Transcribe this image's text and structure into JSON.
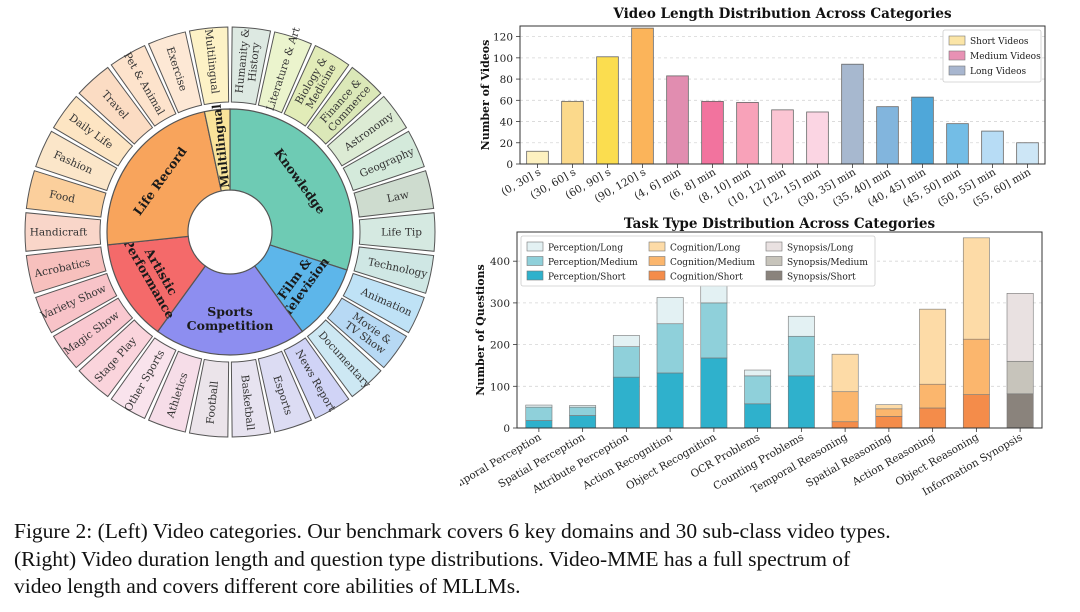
{
  "sunburst": {
    "domains": [
      {
        "name": "Knowledge",
        "lines": [
          "Knowledge"
        ],
        "color": "#6ecbb4",
        "subs": [
          {
            "lines": [
              "Humanity &",
              "History"
            ],
            "color": "#dde9e2"
          },
          {
            "lines": [
              "Literature & Art"
            ],
            "color": "#ebf4cd"
          },
          {
            "lines": [
              "Biology &",
              "Medicine"
            ],
            "color": "#e2ecb8"
          },
          {
            "lines": [
              "Finance &",
              "Commerce"
            ],
            "color": "#dbe8b8"
          },
          {
            "lines": [
              "Astronomy"
            ],
            "color": "#dcebd4"
          },
          {
            "lines": [
              "Geography"
            ],
            "color": "#d4eadb"
          },
          {
            "lines": [
              "Law"
            ],
            "color": "#cedccf"
          },
          {
            "lines": [
              "Life Tip"
            ],
            "color": "#d5e9e1"
          },
          {
            "lines": [
              "Technology"
            ],
            "color": "#cfe7e4"
          }
        ]
      },
      {
        "name": "Film & Television",
        "lines": [
          "Film &",
          "Television"
        ],
        "color": "#5db6ea",
        "subs": [
          {
            "lines": [
              "Animation"
            ],
            "color": "#bfe2f6"
          },
          {
            "lines": [
              "Movie &",
              "TV Show"
            ],
            "color": "#b7d9f4"
          },
          {
            "lines": [
              "Documentary"
            ],
            "color": "#cde8f3"
          }
        ]
      },
      {
        "name": "Sports Competition",
        "lines": [
          "Sports",
          "Competition"
        ],
        "color": "#8d8ef0",
        "subs": [
          {
            "lines": [
              "News Report"
            ],
            "color": "#d0d3f6"
          },
          {
            "lines": [
              "Esports"
            ],
            "color": "#dcdcf3"
          },
          {
            "lines": [
              "Basketball"
            ],
            "color": "#e7e3f0"
          },
          {
            "lines": [
              "Football"
            ],
            "color": "#ebe4ea"
          },
          {
            "lines": [
              "Athletics"
            ],
            "color": "#f6dde8"
          },
          {
            "lines": [
              "Other Sports"
            ],
            "color": "#f9e3ec"
          }
        ]
      },
      {
        "name": "Artistic Performance",
        "lines": [
          "Artistic",
          "Performance"
        ],
        "color": "#f46a6a",
        "subs": [
          {
            "lines": [
              "Stage Play"
            ],
            "color": "#fad4dc"
          },
          {
            "lines": [
              "Magic Show"
            ],
            "color": "#f9c8d0"
          },
          {
            "lines": [
              "Variety Show"
            ],
            "color": "#f8c3c8"
          },
          {
            "lines": [
              "Acrobatics"
            ],
            "color": "#f7c0bd"
          }
        ]
      },
      {
        "name": "Life Record",
        "lines": [
          "Life Record"
        ],
        "color": "#f8a45c",
        "subs": [
          {
            "lines": [
              "Handicraft"
            ],
            "color": "#f9d6c9"
          },
          {
            "lines": [
              "Food"
            ],
            "color": "#fbcf9c"
          },
          {
            "lines": [
              "Fashion"
            ],
            "color": "#fbe6c9"
          },
          {
            "lines": [
              "Daily Life"
            ],
            "color": "#fde5c3"
          },
          {
            "lines": [
              "Travel"
            ],
            "color": "#fbdcc3"
          },
          {
            "lines": [
              "Pet & Animal"
            ],
            "color": "#fde3cc"
          },
          {
            "lines": [
              "Exercise"
            ],
            "color": "#fde8d5"
          }
        ]
      },
      {
        "name": "Multilingual",
        "lines": [
          "Multilingual"
        ],
        "color": "#f9e39a",
        "subs": [
          {
            "lines": [
              "Multilingual"
            ],
            "color": "#fdf2c6"
          }
        ]
      }
    ]
  },
  "chart_data": [
    {
      "type": "bar",
      "title": "Video Length Distribution Across Categories",
      "xlabel": "",
      "ylabel": "Number of Videos",
      "ylim": [
        0,
        130
      ],
      "yticks": [
        0,
        20,
        40,
        60,
        80,
        100,
        120
      ],
      "categories": [
        "(0, 30] s",
        "(30, 60] s",
        "(60, 90] s",
        "(90, 120] s",
        "(4, 6] min",
        "(6, 8] min",
        "(8, 10] min",
        "(10, 12] min",
        "(12, 15] min",
        "(30, 35] min",
        "(35, 40] min",
        "(40, 45] min",
        "(45, 50] min",
        "(50, 55] min",
        "(55, 60] min"
      ],
      "values": [
        12,
        59,
        101,
        128,
        83,
        59,
        58,
        51,
        49,
        94,
        54,
        63,
        38,
        31,
        20
      ],
      "colors": [
        "#fdf1c0",
        "#fbd98b",
        "#fbdd4f",
        "#fbb45a",
        "#e18db0",
        "#f2739e",
        "#f8a2b9",
        "#fbc5d3",
        "#fbd5e3",
        "#a7b8cf",
        "#82b5dd",
        "#4fa7d9",
        "#73bde6",
        "#b7dcf5",
        "#cde6f6"
      ],
      "legend": [
        {
          "label": "Short Videos",
          "color": "#fbe5a7"
        },
        {
          "label": "Medium Videos",
          "color": "#e891b4"
        },
        {
          "label": "Long Videos",
          "color": "#a8b6cf"
        }
      ],
      "legend_position": "top-right"
    },
    {
      "type": "bar",
      "stacked": true,
      "title": "Task Type Distribution Across Categories",
      "xlabel": "",
      "ylabel": "Number of Questions",
      "ylim": [
        0,
        470
      ],
      "yticks": [
        0,
        100,
        200,
        300,
        400
      ],
      "categories": [
        "Temporal Perception",
        "Spatial Perception",
        "Attribute Perception",
        "Action Recognition",
        "Object Recognition",
        "OCR Problems",
        "Counting Problems",
        "Temporal Reasoning",
        "Spatial Reasoning",
        "Action Reasoning",
        "Object Reasoning",
        "Information Synopsis"
      ],
      "family": [
        0,
        0,
        0,
        0,
        0,
        0,
        0,
        1,
        1,
        1,
        1,
        2
      ],
      "short": [
        18,
        30,
        122,
        132,
        168,
        58,
        125,
        15,
        28,
        48,
        80,
        82
      ],
      "medium": [
        32,
        20,
        73,
        118,
        132,
        67,
        95,
        72,
        18,
        57,
        133,
        78
      ],
      "long": [
        5,
        4,
        27,
        63,
        55,
        14,
        48,
        90,
        10,
        180,
        243,
        163
      ],
      "family_colors": [
        [
          "#2fb1cc",
          "#8fd0da",
          "#e3f1f3"
        ],
        [
          "#f48c4a",
          "#fbb66d",
          "#fddba7"
        ],
        [
          "#8a837c",
          "#c7c4bb",
          "#e9e1e1"
        ]
      ],
      "legend": [
        {
          "label": "Perception/Long",
          "color": "#e3f1f3"
        },
        {
          "label": "Cognition/Long",
          "color": "#fddba7"
        },
        {
          "label": "Synopsis/Long",
          "color": "#e9e1e1"
        },
        {
          "label": "Perception/Medium",
          "color": "#8fd0da"
        },
        {
          "label": "Cognition/Medium",
          "color": "#fbb66d"
        },
        {
          "label": "Synopsis/Medium",
          "color": "#c7c4bb"
        },
        {
          "label": "Perception/Short",
          "color": "#2fb1cc"
        },
        {
          "label": "Cognition/Short",
          "color": "#f48c4a"
        },
        {
          "label": "Synopsis/Short",
          "color": "#8a837c"
        }
      ],
      "legend_position": "top-left"
    }
  ],
  "caption": {
    "line1": "Figure 2: (Left) Video categories. Our benchmark covers 6 key domains and 30 sub-class video types.",
    "line2": "(Right) Video duration length and question type distributions. Video-MME has a full spectrum of",
    "line3": "video length and covers different core abilities of MLLMs."
  }
}
